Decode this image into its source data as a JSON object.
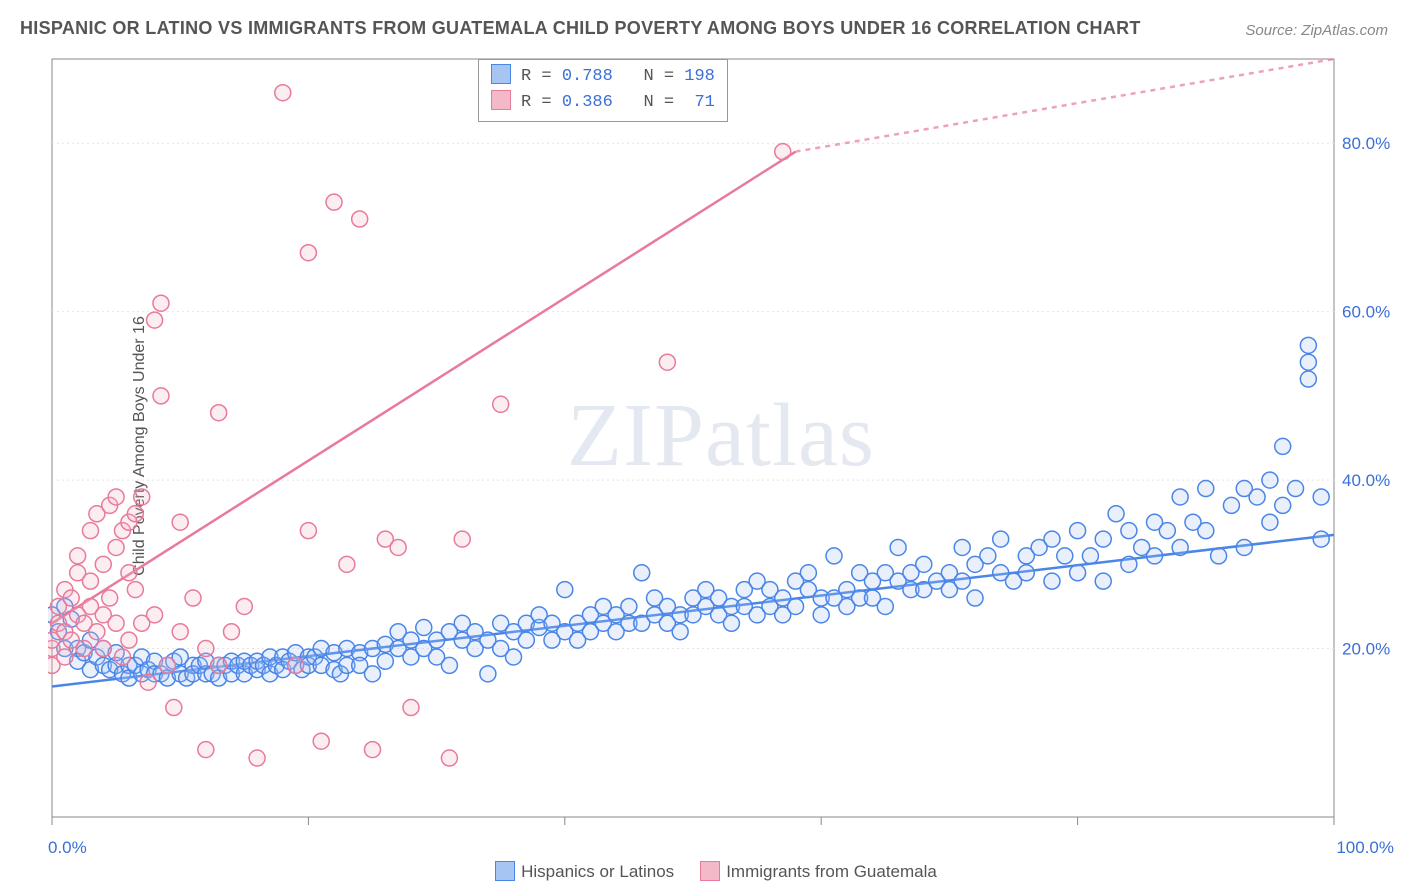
{
  "title": "HISPANIC OR LATINO VS IMMIGRANTS FROM GUATEMALA CHILD POVERTY AMONG BOYS UNDER 16 CORRELATION CHART",
  "source_prefix": "Source: ",
  "source_link": "ZipAtlas.com",
  "ylabel": "Child Poverty Among Boys Under 16",
  "watermark": "ZIPatlas",
  "chart": {
    "type": "scatter",
    "xlim": [
      0,
      100
    ],
    "ylim": [
      0,
      90
    ],
    "x_ticks": [
      0,
      20,
      40,
      60,
      80,
      100
    ],
    "y_gridlines": [
      20,
      40,
      60,
      80
    ],
    "y_tick_labels": [
      "20.0%",
      "40.0%",
      "60.0%",
      "80.0%"
    ],
    "x_end_labels": [
      "0.0%",
      "100.0%"
    ],
    "background_color": "#ffffff",
    "grid_color": "#e4e4e4",
    "grid_dash": "2,3",
    "axis_color": "#888888",
    "marker_radius": 8,
    "marker_stroke_width": 1.5,
    "marker_fill_opacity": 0.25,
    "trend_line_width": 2.5,
    "trend_dash": "5,5",
    "label_color": "#3a6fd8",
    "label_fontsize": 17
  },
  "series": [
    {
      "name": "Hispanics or Latinos",
      "color_stroke": "#4a86e8",
      "color_fill": "#a7c5f2",
      "R": "0.788",
      "N": "198",
      "trend": {
        "x1": 0,
        "y1": 15.5,
        "x2": 100,
        "y2": 33.5,
        "dash_beyond_x": 100
      },
      "points": [
        [
          0,
          24
        ],
        [
          0.5,
          22
        ],
        [
          1,
          25
        ],
        [
          1,
          20
        ],
        [
          1.5,
          23.5
        ],
        [
          2,
          20
        ],
        [
          2,
          18.5
        ],
        [
          2.5,
          19.5
        ],
        [
          3,
          21
        ],
        [
          3,
          17.5
        ],
        [
          3.5,
          19
        ],
        [
          4,
          18
        ],
        [
          4,
          20
        ],
        [
          4.5,
          17.5
        ],
        [
          5,
          18
        ],
        [
          5,
          19.5
        ],
        [
          5.5,
          17
        ],
        [
          6,
          18
        ],
        [
          6,
          16.5
        ],
        [
          6.5,
          18
        ],
        [
          7,
          19
        ],
        [
          7,
          17
        ],
        [
          7.5,
          17.5
        ],
        [
          8,
          18.5
        ],
        [
          8,
          17
        ],
        [
          8.5,
          17
        ],
        [
          9,
          18
        ],
        [
          9,
          16.5
        ],
        [
          9.5,
          18.5
        ],
        [
          10,
          17
        ],
        [
          10,
          19
        ],
        [
          10.5,
          16.5
        ],
        [
          11,
          18
        ],
        [
          11,
          17
        ],
        [
          11.5,
          18
        ],
        [
          12,
          17
        ],
        [
          12,
          18.5
        ],
        [
          12.5,
          17
        ],
        [
          13,
          18
        ],
        [
          13,
          16.5
        ],
        [
          13.5,
          18
        ],
        [
          14,
          17
        ],
        [
          14,
          18.5
        ],
        [
          14.5,
          18
        ],
        [
          15,
          17
        ],
        [
          15,
          18.5
        ],
        [
          15.5,
          18
        ],
        [
          16,
          17.5
        ],
        [
          16,
          18.5
        ],
        [
          16.5,
          18
        ],
        [
          17,
          17
        ],
        [
          17,
          19
        ],
        [
          17.5,
          18
        ],
        [
          18,
          19
        ],
        [
          18,
          17.5
        ],
        [
          18.5,
          18.5
        ],
        [
          19,
          18
        ],
        [
          19,
          19.5
        ],
        [
          19.5,
          17.5
        ],
        [
          20,
          19
        ],
        [
          20,
          18
        ],
        [
          20.5,
          19
        ],
        [
          21,
          18
        ],
        [
          21,
          20
        ],
        [
          22,
          17.5
        ],
        [
          22,
          19.5
        ],
        [
          22.5,
          17
        ],
        [
          23,
          20
        ],
        [
          23,
          18
        ],
        [
          24,
          19.5
        ],
        [
          24,
          18
        ],
        [
          25,
          20
        ],
        [
          25,
          17
        ],
        [
          26,
          20.5
        ],
        [
          26,
          18.5
        ],
        [
          27,
          20
        ],
        [
          27,
          22
        ],
        [
          28,
          19
        ],
        [
          28,
          21
        ],
        [
          29,
          20
        ],
        [
          29,
          22.5
        ],
        [
          30,
          19
        ],
        [
          30,
          21
        ],
        [
          31,
          22
        ],
        [
          31,
          18
        ],
        [
          32,
          21
        ],
        [
          32,
          23
        ],
        [
          33,
          20
        ],
        [
          33,
          22
        ],
        [
          34,
          17
        ],
        [
          34,
          21
        ],
        [
          35,
          23
        ],
        [
          35,
          20
        ],
        [
          36,
          22
        ],
        [
          36,
          19
        ],
        [
          37,
          23
        ],
        [
          37,
          21
        ],
        [
          38,
          22.5
        ],
        [
          38,
          24
        ],
        [
          39,
          21
        ],
        [
          39,
          23
        ],
        [
          40,
          22
        ],
        [
          40,
          27
        ],
        [
          41,
          23
        ],
        [
          41,
          21
        ],
        [
          42,
          24
        ],
        [
          42,
          22
        ],
        [
          43,
          23
        ],
        [
          43,
          25
        ],
        [
          44,
          22
        ],
        [
          44,
          24
        ],
        [
          45,
          23
        ],
        [
          45,
          25
        ],
        [
          46,
          29
        ],
        [
          46,
          23
        ],
        [
          47,
          24
        ],
        [
          47,
          26
        ],
        [
          48,
          23
        ],
        [
          48,
          25
        ],
        [
          49,
          24
        ],
        [
          49,
          22
        ],
        [
          50,
          26
        ],
        [
          50,
          24
        ],
        [
          51,
          25
        ],
        [
          51,
          27
        ],
        [
          52,
          24
        ],
        [
          52,
          26
        ],
        [
          53,
          25
        ],
        [
          53,
          23
        ],
        [
          54,
          27
        ],
        [
          54,
          25
        ],
        [
          55,
          24
        ],
        [
          55,
          28
        ],
        [
          56,
          25
        ],
        [
          56,
          27
        ],
        [
          57,
          26
        ],
        [
          57,
          24
        ],
        [
          58,
          28
        ],
        [
          58,
          25
        ],
        [
          59,
          27
        ],
        [
          59,
          29
        ],
        [
          60,
          26
        ],
        [
          60,
          24
        ],
        [
          61,
          31
        ],
        [
          61,
          26
        ],
        [
          62,
          27
        ],
        [
          62,
          25
        ],
        [
          63,
          29
        ],
        [
          63,
          26
        ],
        [
          64,
          28
        ],
        [
          64,
          26
        ],
        [
          65,
          29
        ],
        [
          65,
          25
        ],
        [
          66,
          28
        ],
        [
          66,
          32
        ],
        [
          67,
          27
        ],
        [
          67,
          29
        ],
        [
          68,
          27
        ],
        [
          68,
          30
        ],
        [
          69,
          28
        ],
        [
          70,
          29
        ],
        [
          70,
          27
        ],
        [
          71,
          32
        ],
        [
          71,
          28
        ],
        [
          72,
          30
        ],
        [
          72,
          26
        ],
        [
          73,
          31
        ],
        [
          74,
          29
        ],
        [
          74,
          33
        ],
        [
          75,
          28
        ],
        [
          76,
          31
        ],
        [
          76,
          29
        ],
        [
          77,
          32
        ],
        [
          78,
          28
        ],
        [
          78,
          33
        ],
        [
          79,
          31
        ],
        [
          80,
          29
        ],
        [
          80,
          34
        ],
        [
          81,
          31
        ],
        [
          82,
          33
        ],
        [
          82,
          28
        ],
        [
          83,
          36
        ],
        [
          84,
          30
        ],
        [
          84,
          34
        ],
        [
          85,
          32
        ],
        [
          86,
          35
        ],
        [
          86,
          31
        ],
        [
          87,
          34
        ],
        [
          88,
          38
        ],
        [
          88,
          32
        ],
        [
          89,
          35
        ],
        [
          90,
          34
        ],
        [
          90,
          39
        ],
        [
          91,
          31
        ],
        [
          92,
          37
        ],
        [
          93,
          39
        ],
        [
          93,
          32
        ],
        [
          94,
          38
        ],
        [
          95,
          40
        ],
        [
          95,
          35
        ],
        [
          96,
          37
        ],
        [
          96,
          44
        ],
        [
          97,
          39
        ],
        [
          98,
          52
        ],
        [
          98,
          56
        ],
        [
          98,
          54
        ],
        [
          99,
          38
        ],
        [
          99,
          33
        ]
      ]
    },
    {
      "name": "Immigrants from Guatemala",
      "color_stroke": "#e87a9a",
      "color_fill": "#f4b9c9",
      "R": "0.386",
      "N": "71",
      "trend": {
        "x1": 0,
        "y1": 23,
        "x2": 58,
        "y2": 79,
        "dash_beyond_x": 58,
        "dash_x2": 100,
        "dash_y2": 120
      },
      "points": [
        [
          0,
          18
        ],
        [
          0,
          20
        ],
        [
          0,
          21
        ],
        [
          0.5,
          23
        ],
        [
          0.5,
          25
        ],
        [
          1,
          22
        ],
        [
          1,
          27
        ],
        [
          1,
          19
        ],
        [
          1.5,
          26
        ],
        [
          1.5,
          21
        ],
        [
          2,
          29
        ],
        [
          2,
          24
        ],
        [
          2,
          31
        ],
        [
          2.5,
          20
        ],
        [
          2.5,
          23
        ],
        [
          3,
          34
        ],
        [
          3,
          28
        ],
        [
          3,
          25
        ],
        [
          3.5,
          22
        ],
        [
          3.5,
          36
        ],
        [
          4,
          24
        ],
        [
          4,
          30
        ],
        [
          4,
          20
        ],
        [
          4.5,
          37
        ],
        [
          4.5,
          26
        ],
        [
          5,
          32
        ],
        [
          5,
          38
        ],
        [
          5,
          23
        ],
        [
          5.5,
          34
        ],
        [
          5.5,
          19
        ],
        [
          6,
          29
        ],
        [
          6,
          35
        ],
        [
          6,
          21
        ],
        [
          6.5,
          36
        ],
        [
          6.5,
          27
        ],
        [
          7,
          38
        ],
        [
          7,
          23
        ],
        [
          7.5,
          16
        ],
        [
          8,
          59
        ],
        [
          8,
          24
        ],
        [
          8.5,
          50
        ],
        [
          8.5,
          61
        ],
        [
          9,
          18
        ],
        [
          9.5,
          13
        ],
        [
          10,
          22
        ],
        [
          10,
          35
        ],
        [
          11,
          26
        ],
        [
          12,
          20
        ],
        [
          12,
          8
        ],
        [
          13,
          18
        ],
        [
          13,
          48
        ],
        [
          14,
          22
        ],
        [
          15,
          25
        ],
        [
          16,
          7
        ],
        [
          18,
          86
        ],
        [
          19,
          18
        ],
        [
          20,
          67
        ],
        [
          20,
          34
        ],
        [
          21,
          9
        ],
        [
          22,
          73
        ],
        [
          23,
          30
        ],
        [
          24,
          71
        ],
        [
          25,
          8
        ],
        [
          26,
          33
        ],
        [
          27,
          32
        ],
        [
          28,
          13
        ],
        [
          31,
          7
        ],
        [
          32,
          33
        ],
        [
          35,
          49
        ],
        [
          48,
          54
        ],
        [
          57,
          79
        ]
      ]
    }
  ],
  "stats_label_R": "R =",
  "stats_label_N": "N =",
  "bottom_legend": {
    "items": [
      {
        "label": "Hispanics or Latinos",
        "fill": "#a7c5f2",
        "stroke": "#4a86e8"
      },
      {
        "label": "Immigrants from Guatemala",
        "fill": "#f4b9c9",
        "stroke": "#e87a9a"
      }
    ]
  }
}
